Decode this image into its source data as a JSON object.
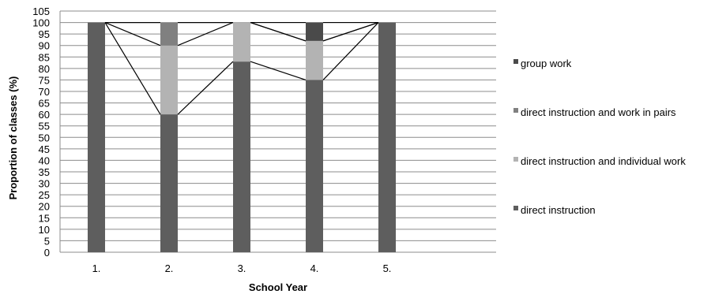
{
  "chart_data": {
    "type": "bar",
    "stacked": true,
    "categories": [
      "1.",
      "2.",
      "3.",
      "4.",
      "5."
    ],
    "series": [
      {
        "name": "direct instruction",
        "values": [
          100,
          60,
          83,
          75,
          100
        ],
        "color": "#5e5e5e"
      },
      {
        "name": "direct instruction and individual work",
        "values": [
          0,
          30,
          17,
          17,
          0
        ],
        "color": "#b3b3b3"
      },
      {
        "name": "direct instruction and work in pairs",
        "values": [
          0,
          10,
          0,
          0,
          0
        ],
        "color": "#808080"
      },
      {
        "name": "group work",
        "values": [
          0,
          0,
          0,
          8,
          0
        ],
        "color": "#4a4a4a"
      }
    ],
    "series_lines": true,
    "xlabel": "School Year",
    "ylabel": "Proportion of classes (%)",
    "ylim": [
      0,
      105
    ],
    "yticks": [
      0,
      5,
      10,
      15,
      20,
      25,
      30,
      35,
      40,
      45,
      50,
      55,
      60,
      65,
      70,
      75,
      80,
      85,
      90,
      95,
      100,
      105
    ],
    "grid": true,
    "legend_position": "right"
  }
}
